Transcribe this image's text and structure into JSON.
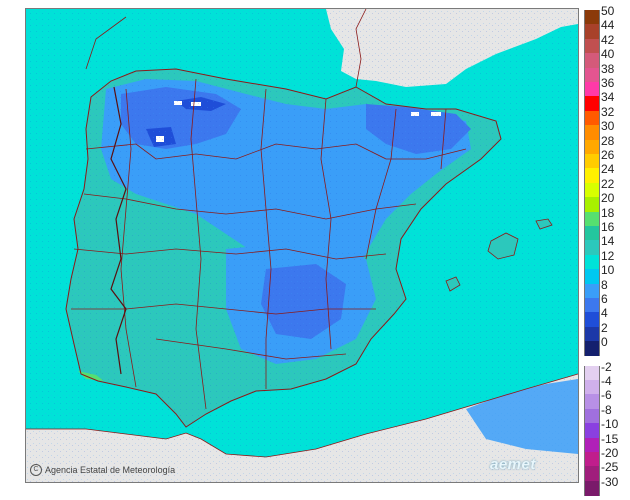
{
  "credit": {
    "icon": "copyright-icon",
    "text": "Agencia Estatal de Meteorología"
  },
  "logo": {
    "text": "aemet"
  },
  "colors": {
    "sea": "#00e2d8",
    "land_outside": "#e6e6e6",
    "border_lines": "#8b1a1a",
    "atlantic_land_low": "#2cc6c6",
    "interior_blue": "#2f7ff0"
  },
  "legend": {
    "positive": [
      {
        "label": "50",
        "color": "#8b3a0a"
      },
      {
        "label": "44",
        "color": "#a8412a"
      },
      {
        "label": "42",
        "color": "#c05050"
      },
      {
        "label": "40",
        "color": "#d45a7a"
      },
      {
        "label": "38",
        "color": "#e35590"
      },
      {
        "label": "36",
        "color": "#ff3aa8"
      },
      {
        "label": "34",
        "color": "#ff0000"
      },
      {
        "label": "32",
        "color": "#ff5a00"
      },
      {
        "label": "30",
        "color": "#ff8c00"
      },
      {
        "label": "28",
        "color": "#ffa800"
      },
      {
        "label": "26",
        "color": "#ffcc00"
      },
      {
        "label": "24",
        "color": "#fff000"
      },
      {
        "label": "22",
        "color": "#d8ff00"
      },
      {
        "label": "20",
        "color": "#a8f000"
      },
      {
        "label": "18",
        "color": "#56e070"
      },
      {
        "label": "16",
        "color": "#23c69e"
      },
      {
        "label": "14",
        "color": "#2cc8bc"
      },
      {
        "label": "12",
        "color": "#00e2d8"
      },
      {
        "label": "10",
        "color": "#00c8f0"
      },
      {
        "label": "8",
        "color": "#3a9ef8"
      },
      {
        "label": "6",
        "color": "#3c78ee"
      },
      {
        "label": "4",
        "color": "#1f4ed8"
      },
      {
        "label": "2",
        "color": "#1c38a8"
      },
      {
        "label": "0",
        "color": "#14206e"
      }
    ],
    "negative": [
      {
        "label": "-2",
        "color": "#e3d0f0"
      },
      {
        "label": "-4",
        "color": "#d0b0ec"
      },
      {
        "label": "-6",
        "color": "#b890e6"
      },
      {
        "label": "-8",
        "color": "#a070de"
      },
      {
        "label": "-10",
        "color": "#8a40e0"
      },
      {
        "label": "-15",
        "color": "#b020b8"
      },
      {
        "label": "-20",
        "color": "#c01e8c"
      },
      {
        "label": "-25",
        "color": "#a01e7c"
      },
      {
        "label": "-30",
        "color": "#7a1a6a"
      }
    ]
  }
}
